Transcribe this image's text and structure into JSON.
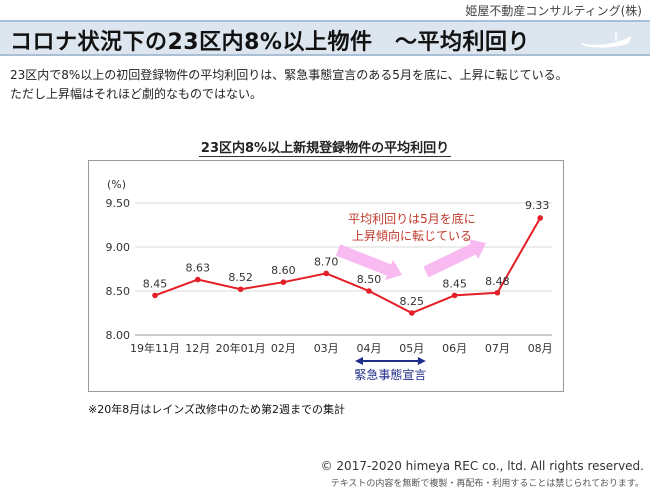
{
  "company": "姫屋不動産コンサルティング(株)",
  "header": {
    "title": "コロナ状況下の23区内8%以上物件　～平均利回り"
  },
  "summary": [
    "23区内で8%以上の初回登録物件の平均利回りは、緊急事態宣言のある5月を底に、上昇に転じている。",
    "ただし上昇幅はそれほど劇的なものではない。"
  ],
  "chart_data": {
    "type": "line",
    "title": "23区内8%以上新規登録物件の平均利回り",
    "ylabel": "(%)",
    "categories": [
      "19年11月",
      "12月",
      "20年01月",
      "02月",
      "03月",
      "04月",
      "05月",
      "06月",
      "07月",
      "08月"
    ],
    "values": [
      8.45,
      8.63,
      8.52,
      8.6,
      8.7,
      8.5,
      8.25,
      8.45,
      8.48,
      9.33
    ],
    "value_labels": [
      "8.45",
      "8.63",
      "8.52",
      "8.60",
      "8.70",
      "8.50",
      "8.25",
      "8.45",
      "8.48",
      "9.33"
    ],
    "ylim": [
      8.0,
      9.5
    ],
    "yticks": [
      "8.00",
      "8.50",
      "9.00",
      "9.50"
    ],
    "ytick_values": [
      8.0,
      8.5,
      9.0,
      9.5
    ],
    "grid": true,
    "series_color": "#e41e26",
    "annotation": [
      "平均利回りは5月を底に",
      "上昇傾向に転じている"
    ],
    "annotation_color": "#c0392b",
    "arrow_color": "#f7b3ee",
    "emergency_label": "緊急事態宣言",
    "emergency_range": [
      "04月",
      "05月"
    ],
    "emergency_color": "#1f2d8a"
  },
  "note": "※20年8月はレインズ改修中のため第2週までの集計",
  "footer": {
    "copyright": "©  2017-2020 himeya REC co., ltd. All rights reserved.",
    "notice": "テキストの内容を無断で複製・再配布・利用することは禁じられております。"
  }
}
